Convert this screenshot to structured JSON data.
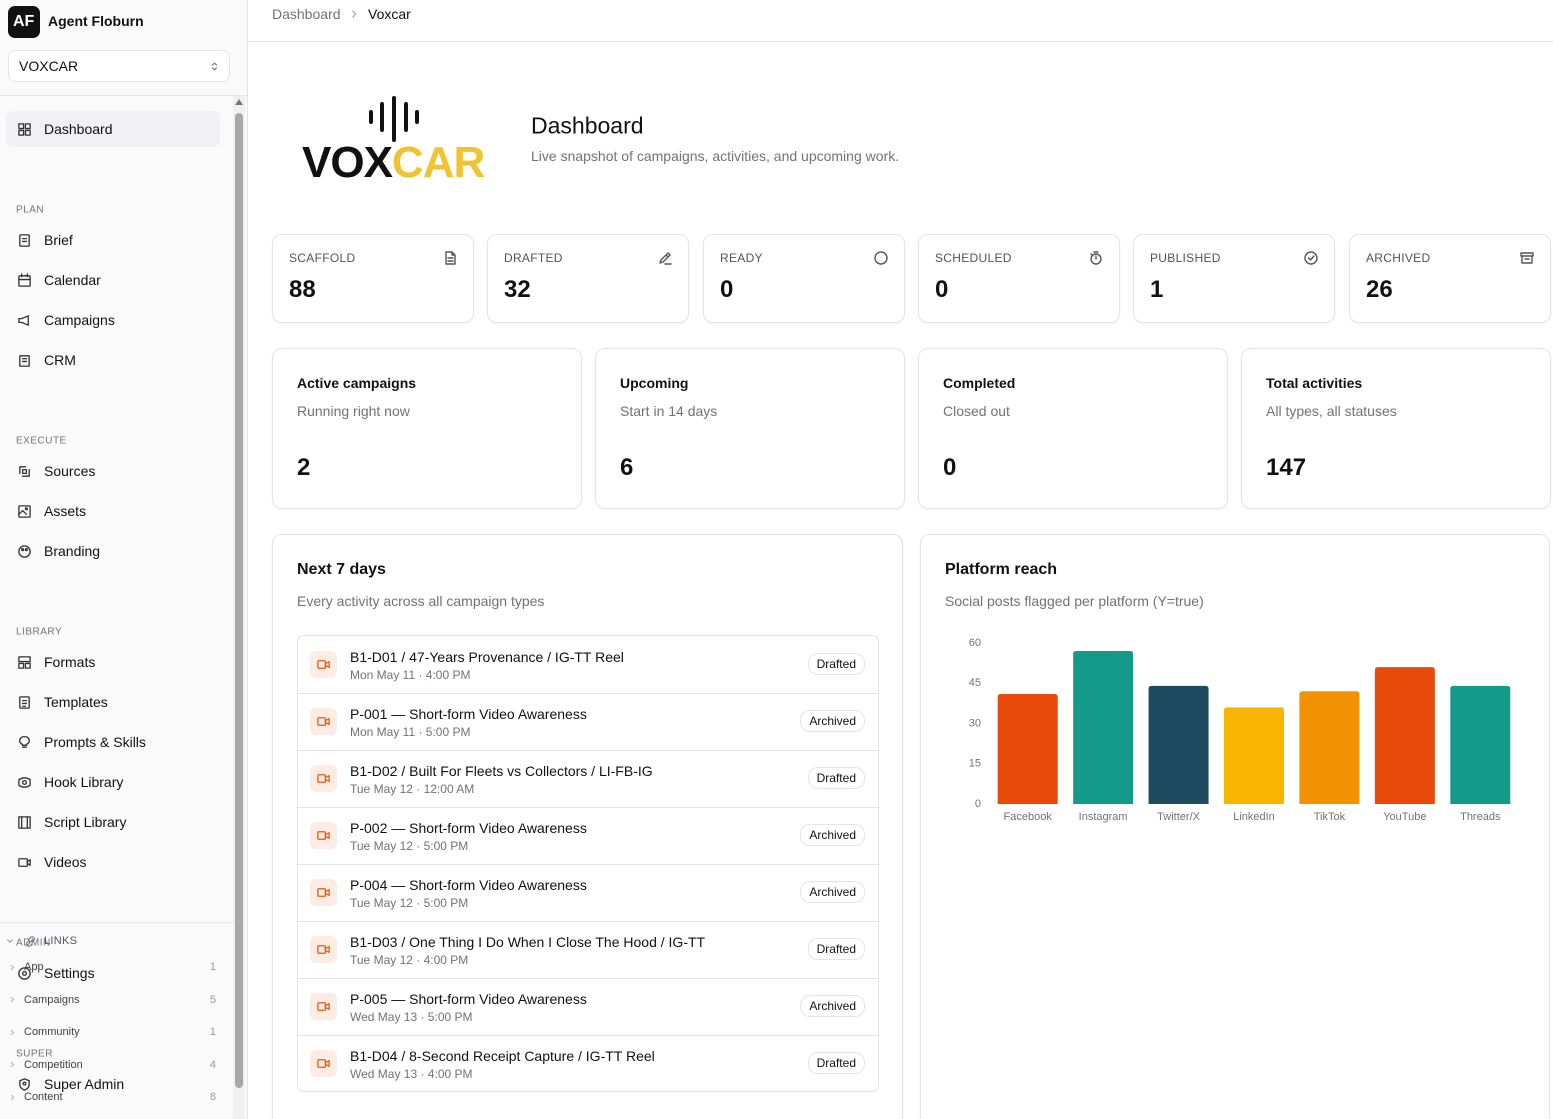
{
  "sidebar": {
    "badge": "AF",
    "brand": "Agent Floburn",
    "workspace": "VOXCAR",
    "nav": [
      {
        "label": "Dashboard",
        "active": true
      },
      {
        "section": "PLAN"
      },
      {
        "label": "Brief"
      },
      {
        "label": "Calendar"
      },
      {
        "label": "Campaigns"
      },
      {
        "label": "CRM"
      },
      {
        "section": "EXECUTE"
      },
      {
        "label": "Sources"
      },
      {
        "label": "Assets"
      },
      {
        "label": "Branding"
      },
      {
        "section": "LIBRARY"
      },
      {
        "label": "Formats"
      },
      {
        "label": "Templates"
      },
      {
        "label": "Prompts & Skills"
      },
      {
        "label": "Hook Library"
      },
      {
        "label": "Script Library"
      },
      {
        "label": "Videos"
      },
      {
        "section": "ADMIN"
      },
      {
        "label": "Settings"
      },
      {
        "section": "SUPER"
      },
      {
        "label": "Super Admin"
      }
    ],
    "links": {
      "title": "LINKS",
      "items": [
        {
          "label": "App",
          "count": 1
        },
        {
          "label": "Campaigns",
          "count": 5
        },
        {
          "label": "Community",
          "count": 1
        },
        {
          "label": "Competition",
          "count": 4
        },
        {
          "label": "Content",
          "count": 8
        }
      ]
    }
  },
  "breadcrumb": [
    "Dashboard",
    "Voxcar"
  ],
  "header": {
    "logo_vox": "VOX",
    "logo_car": "CAR",
    "title": "Dashboard",
    "subtitle": "Live snapshot of campaigns, activities, and upcoming work."
  },
  "status_cards": [
    {
      "label": "SCAFFOLD",
      "value": 88
    },
    {
      "label": "DRAFTED",
      "value": 32
    },
    {
      "label": "READY",
      "value": 0
    },
    {
      "label": "SCHEDULED",
      "value": 0
    },
    {
      "label": "PUBLISHED",
      "value": 1
    },
    {
      "label": "ARCHIVED",
      "value": 26
    }
  ],
  "summary_cards": [
    {
      "title": "Active campaigns",
      "subtitle": "Running right now",
      "value": 2
    },
    {
      "title": "Upcoming",
      "subtitle": "Start in 14 days",
      "value": 6
    },
    {
      "title": "Completed",
      "subtitle": "Closed out",
      "value": 0
    },
    {
      "title": "Total activities",
      "subtitle": "All types, all statuses",
      "value": 147
    }
  ],
  "next_days": {
    "title": "Next 7 days",
    "subtitle": "Every activity across all campaign types",
    "items": [
      {
        "title": "B1-D01 / 47-Years Provenance / IG-TT Reel",
        "time": "Mon May 11 · 4:00 PM",
        "status": "Drafted"
      },
      {
        "title": "P-001 — Short-form Video Awareness",
        "time": "Mon May 11 · 5:00 PM",
        "status": "Archived"
      },
      {
        "title": "B1-D02 / Built For Fleets vs Collectors / LI-FB-IG",
        "time": "Tue May 12 · 12:00 AM",
        "status": "Drafted"
      },
      {
        "title": "P-002 — Short-form Video Awareness",
        "time": "Tue May 12 · 5:00 PM",
        "status": "Archived"
      },
      {
        "title": "P-004 — Short-form Video Awareness",
        "time": "Tue May 12 · 5:00 PM",
        "status": "Archived"
      },
      {
        "title": "B1-D03 / One Thing I Do When I Close The Hood / IG-TT",
        "time": "Tue May 12 · 4:00 PM",
        "status": "Drafted"
      },
      {
        "title": "P-005 — Short-form Video Awareness",
        "time": "Wed May 13 · 5:00 PM",
        "status": "Archived"
      },
      {
        "title": "B1-D04 / 8-Second Receipt Capture / IG-TT Reel",
        "time": "Wed May 13 · 4:00 PM",
        "status": "Drafted"
      }
    ]
  },
  "chart_data": {
    "type": "bar",
    "title": "Platform reach",
    "subtitle": "Social posts flagged per platform (Y=true)",
    "categories": [
      "Facebook",
      "Instagram",
      "Twitter/X",
      "LinkedIn",
      "TikTok",
      "YouTube",
      "Threads"
    ],
    "values": [
      41,
      57,
      44,
      36,
      42,
      51,
      44
    ],
    "colors": [
      "#e84a0c",
      "#15998a",
      "#1d4b5f",
      "#f7b500",
      "#f39200",
      "#e84a0c",
      "#15998a"
    ],
    "ylim": [
      0,
      60
    ],
    "yticks": [
      0,
      15,
      30,
      45,
      60
    ],
    "grid": false
  }
}
